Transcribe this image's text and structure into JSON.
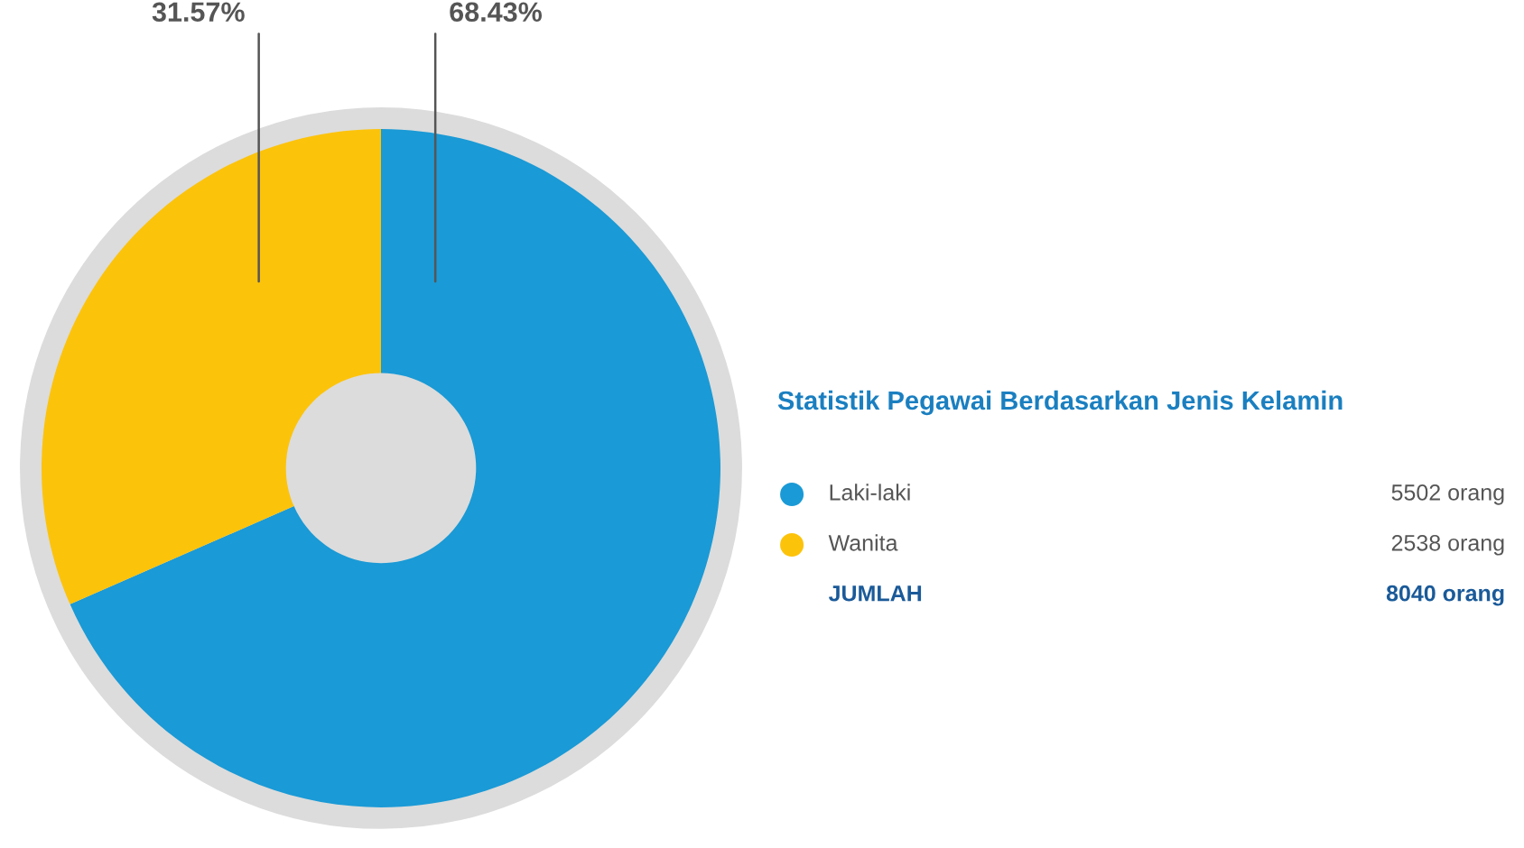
{
  "chart_data": {
    "type": "donut",
    "title": "Statistik Pegawai Berdasarkan Jenis Kelamin",
    "categories": [
      "Laki-laki",
      "Wanita"
    ],
    "values": [
      68.43,
      31.57
    ],
    "colors": [
      "#1a9ad6",
      "#fcc30b"
    ],
    "value_labels": [
      "68.43%",
      "31.57%"
    ],
    "annotations": [
      "5502 orang",
      "2538 orang",
      "JUMLAH",
      "8040 orang"
    ],
    "legend": "right"
  }
}
